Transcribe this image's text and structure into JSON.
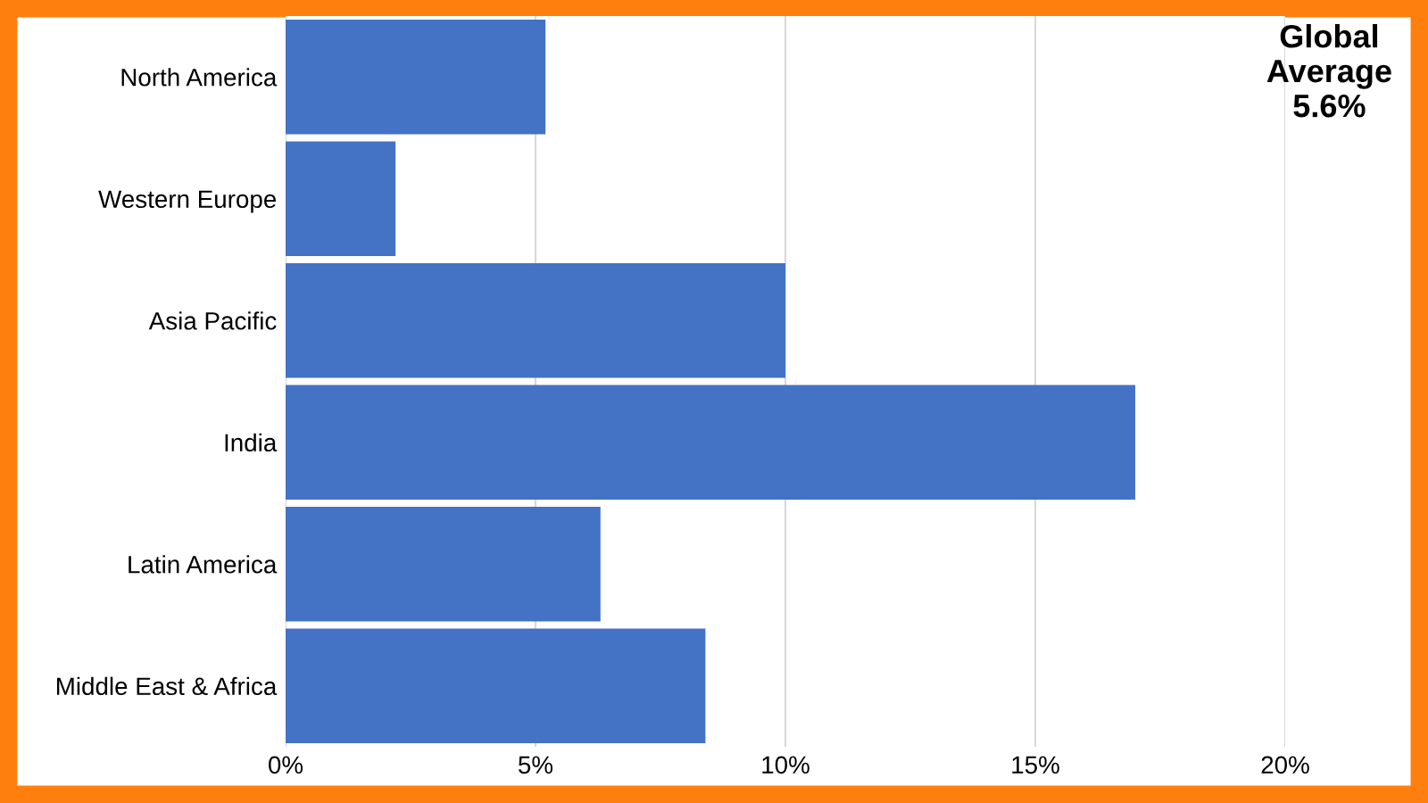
{
  "chart_data": {
    "type": "bar",
    "orientation": "horizontal",
    "categories": [
      "North America",
      "Western Europe",
      "Asia Pacific",
      "India",
      "Latin America",
      "Middle East & Africa"
    ],
    "values": [
      5.2,
      2.2,
      10.0,
      17.0,
      6.3,
      8.4
    ],
    "color": "#4472c4",
    "xlim": [
      0,
      20
    ],
    "xticks": [
      {
        "value": 0,
        "label": "0%"
      },
      {
        "value": 5,
        "label": "5%"
      },
      {
        "value": 10,
        "label": "10%"
      },
      {
        "value": 15,
        "label": "15%"
      },
      {
        "value": 20,
        "label": "20%"
      }
    ],
    "grid": "x",
    "annotations": [
      "Global\nAverage\n5.6%"
    ]
  }
}
